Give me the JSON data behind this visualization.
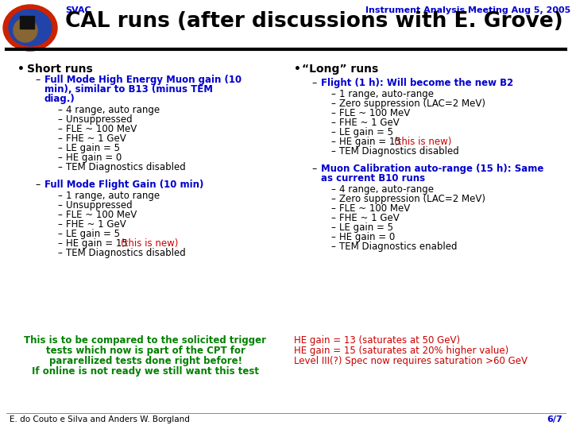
{
  "header_svac": "SVAC",
  "header_meeting": "Instrument Analysis Meeting Aug 5, 2005",
  "title": "CAL runs (after discussions with E. Grove)",
  "blue_color": "#0000cc",
  "red_color": "#cc0000",
  "green_color": "#008000",
  "black_color": "#000000",
  "footer_left": "E. do Couto e Silva and Anders W. Borgland",
  "footer_right": "6/7",
  "bg_color": "#ffffff",
  "left_bullet": "Short runs",
  "left_sub1_header_line1": "Full Mode High Energy Muon gain (10",
  "left_sub1_header_line2": "min), similar to B13 (minus TEM",
  "left_sub1_header_line3": "diag.)",
  "left_sub1_items": [
    "4 range, auto range",
    "Unsuppressed",
    "FLE ~ 100 MeV",
    "FHE ~ 1 GeV",
    "LE gain = 5",
    "HE gain = 0",
    "TEM Diagnostics disabled"
  ],
  "left_sub2_header": "Full Mode Flight Gain (10 min)",
  "left_sub2_items_plain": [
    "1 range, auto range",
    "Unsuppressed",
    "FLE ~ 100 MeV",
    "FHE ~ 1 GeV",
    "LE gain = 5"
  ],
  "left_sub2_item_new_base": "HE gain = 15 ",
  "left_sub2_item_new_red": "(this is new)",
  "left_sub2_items_last": [
    "TEM Diagnostics disabled"
  ],
  "right_bullet": "“Long” runs",
  "right_sub1_header": "Flight (1 h): Will become the new B2",
  "right_sub1_items_plain": [
    "1 range, auto-range",
    "Zero suppression (LAC=2 MeV)",
    "FLE ~ 100 MeV",
    "FHE ~ 1 GeV",
    "LE gain = 5"
  ],
  "right_sub1_item_new_base": "HE gain = 15 ",
  "right_sub1_item_new_red": "(this is new)",
  "right_sub1_items_last": [
    "TEM Diagnostics disabled"
  ],
  "right_sub2_header_line1": "Muon Calibration auto-range (15 h): Same",
  "right_sub2_header_line2": "as current B10 runs",
  "right_sub2_items": [
    "4 range, auto-range",
    "Zero suppression (LAC=2 MeV)",
    "FLE ~ 100 MeV",
    "FHE ~ 1 GeV",
    "LE gain = 5",
    "HE gain = 0",
    "TEM Diagnostics enabled"
  ],
  "bottom_green_lines": [
    "This is to be compared to the solicited trigger",
    "tests which now is part of the CPT for",
    "pararellized tests done right before!",
    "If online is not ready we still want this test"
  ],
  "bottom_red_lines": [
    "HE gain = 13 (saturates at 50 GeV)",
    "HE gain = 15 (saturates at 20% higher value)",
    "Level III(?) Spec now requires saturation >60 GeV"
  ]
}
